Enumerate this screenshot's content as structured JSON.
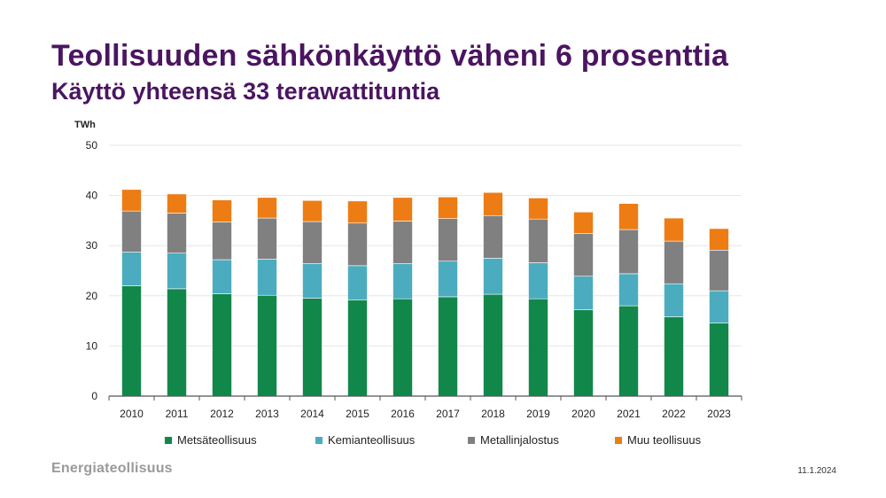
{
  "header": {
    "title": "Teollisuuden sähkönkäyttö väheni 6 prosenttia",
    "subtitle": "Käyttö yhteensä 33 terawattituntia"
  },
  "footer": {
    "brand": "Energiateollisuus",
    "date": "11.1.2024"
  },
  "chart_data": {
    "type": "bar",
    "stacked": true,
    "title": "",
    "xlabel": "",
    "ylabel": "TWh",
    "ylim": [
      0,
      50
    ],
    "yticks": [
      0,
      10,
      20,
      30,
      40,
      50
    ],
    "grid": true,
    "legend_position": "bottom",
    "categories": [
      "2010",
      "2011",
      "2012",
      "2013",
      "2014",
      "2015",
      "2016",
      "2017",
      "2018",
      "2019",
      "2020",
      "2021",
      "2022",
      "2023"
    ],
    "series": [
      {
        "name": "Metsäteollisuus",
        "color": "#12874a",
        "values": [
          22.0,
          21.4,
          20.4,
          20.1,
          19.5,
          19.2,
          19.4,
          19.8,
          20.3,
          19.4,
          17.2,
          18.0,
          15.8,
          14.6
        ]
      },
      {
        "name": "Kemianteollisuus",
        "color": "#4bacbf",
        "values": [
          6.7,
          7.1,
          6.8,
          7.2,
          6.9,
          6.8,
          7.0,
          7.1,
          7.2,
          7.2,
          6.7,
          6.4,
          6.6,
          6.4
        ]
      },
      {
        "name": "Metallinjalostus",
        "color": "#808080",
        "values": [
          8.2,
          8.0,
          7.5,
          8.2,
          8.4,
          8.5,
          8.5,
          8.5,
          8.5,
          8.7,
          8.5,
          8.8,
          8.5,
          8.1
        ]
      },
      {
        "name": "Muu teollisuus",
        "color": "#ed7c14",
        "values": [
          4.3,
          3.8,
          4.4,
          4.1,
          4.2,
          4.4,
          4.7,
          4.3,
          4.6,
          4.2,
          4.3,
          5.2,
          4.6,
          4.3
        ]
      }
    ]
  }
}
